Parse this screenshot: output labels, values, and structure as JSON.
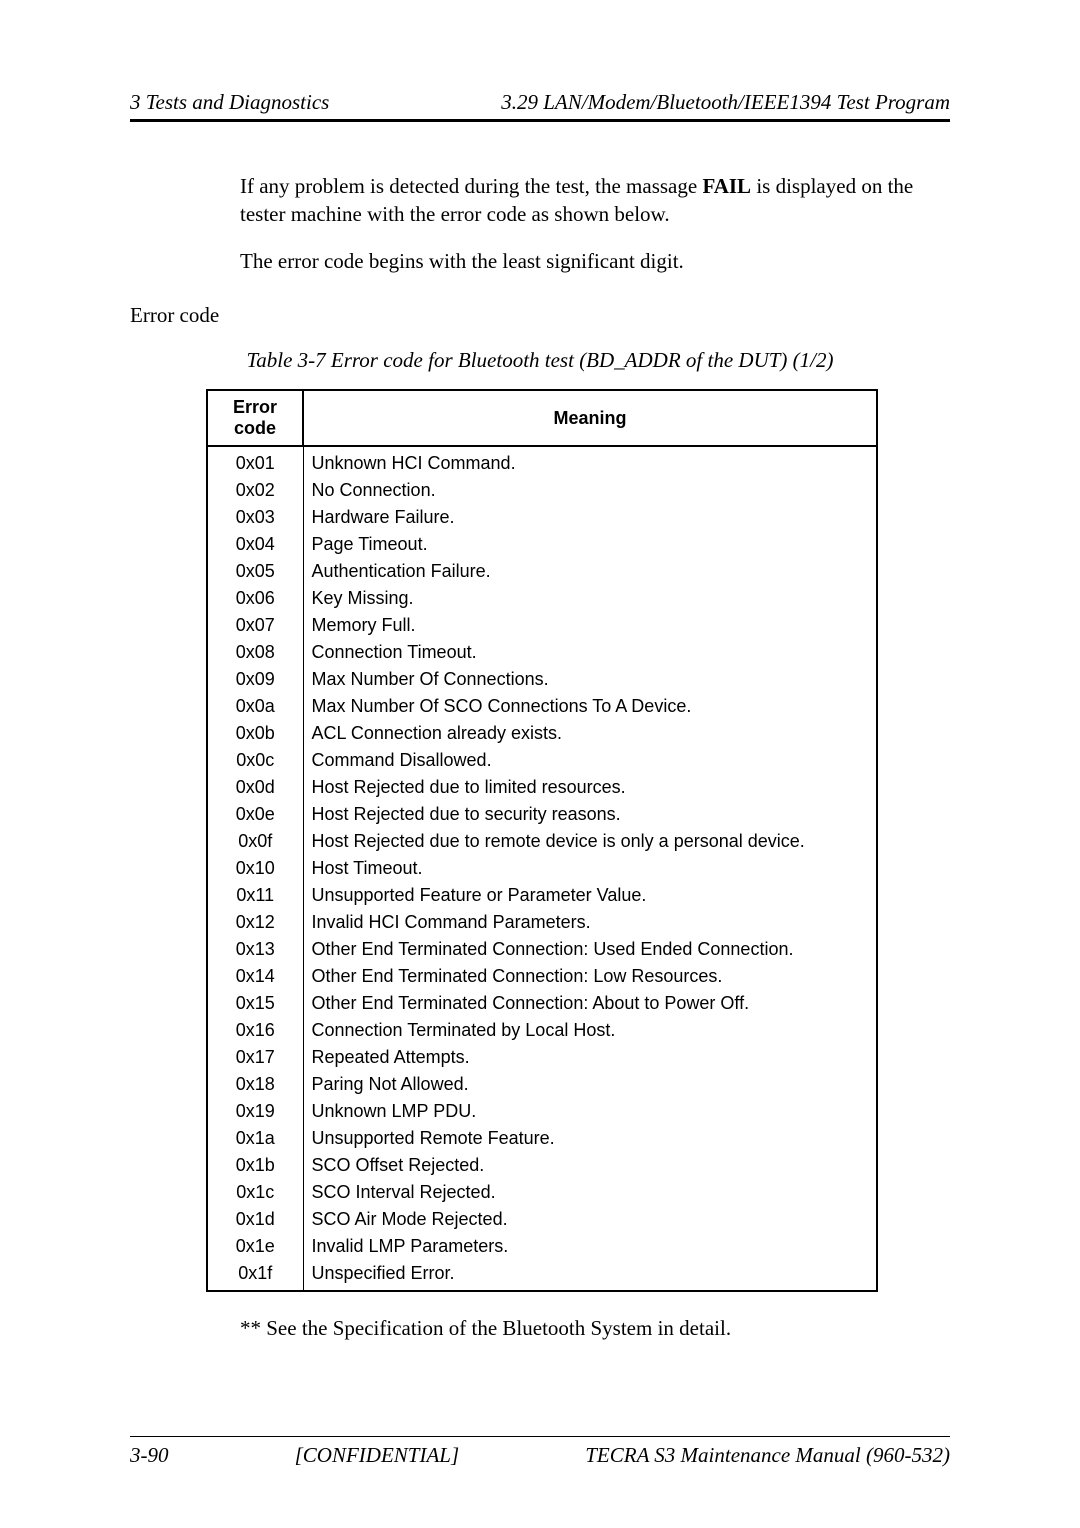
{
  "header": {
    "left": "3  Tests and Diagnostics",
    "right": "3.29  LAN/Modem/Bluetooth/IEEE1394 Test Program"
  },
  "intro": {
    "p1_before": "If any problem is detected during the test, the massage ",
    "p1_bold": "FAIL",
    "p1_after": " is displayed on the tester machine with the error code as shown below.",
    "p2": "The error code begins with the least significant digit."
  },
  "errorcode_label": "Error code",
  "table_caption": "Table 3-7  Error code for Bluetooth test (BD_ADDR of the DUT) (1/2)",
  "table": {
    "columns": [
      "Error code",
      "Meaning"
    ],
    "col_widths": [
      "96px",
      "auto"
    ],
    "header_fontsize": 18,
    "cell_fontsize": 18,
    "font_family": "Arial",
    "border_color": "#000000",
    "rows": [
      [
        "0x01",
        "Unknown HCI Command."
      ],
      [
        "0x02",
        "No Connection."
      ],
      [
        "0x03",
        "Hardware Failure."
      ],
      [
        "0x04",
        "Page Timeout."
      ],
      [
        "0x05",
        "Authentication Failure."
      ],
      [
        "0x06",
        "Key Missing."
      ],
      [
        "0x07",
        "Memory Full."
      ],
      [
        "0x08",
        "Connection Timeout."
      ],
      [
        "0x09",
        "Max Number Of Connections."
      ],
      [
        "0x0a",
        "Max Number Of SCO Connections To A Device."
      ],
      [
        "0x0b",
        "ACL Connection already exists."
      ],
      [
        "0x0c",
        "Command Disallowed."
      ],
      [
        "0x0d",
        "Host Rejected due to limited resources."
      ],
      [
        "0x0e",
        "Host Rejected due to security reasons."
      ],
      [
        "0x0f",
        "Host Rejected due to remote device is only a personal device."
      ],
      [
        "0x10",
        "Host Timeout."
      ],
      [
        "0x11",
        "Unsupported Feature or Parameter Value."
      ],
      [
        "0x12",
        "Invalid HCI Command Parameters."
      ],
      [
        "0x13",
        "Other End Terminated Connection: Used Ended Connection."
      ],
      [
        "0x14",
        "Other End Terminated Connection: Low Resources."
      ],
      [
        "0x15",
        "Other End Terminated Connection: About to Power Off."
      ],
      [
        "0x16",
        "Connection Terminated by Local Host."
      ],
      [
        "0x17",
        "Repeated Attempts."
      ],
      [
        "0x18",
        "Paring Not Allowed."
      ],
      [
        "0x19",
        "Unknown LMP PDU."
      ],
      [
        "0x1a",
        "Unsupported Remote Feature."
      ],
      [
        "0x1b",
        "SCO Offset Rejected."
      ],
      [
        "0x1c",
        "SCO Interval Rejected."
      ],
      [
        "0x1d",
        "SCO Air Mode Rejected."
      ],
      [
        "0x1e",
        "Invalid LMP Parameters."
      ],
      [
        "0x1f",
        "Unspecified Error."
      ]
    ]
  },
  "footnote": "** See the Specification of the Bluetooth System in detail.",
  "footer": {
    "left": "3-90",
    "center": "[CONFIDENTIAL]",
    "right": "TECRA S3 Maintenance Manual (960-532)"
  },
  "colors": {
    "text": "#000000",
    "background": "#ffffff",
    "rule": "#000000"
  }
}
